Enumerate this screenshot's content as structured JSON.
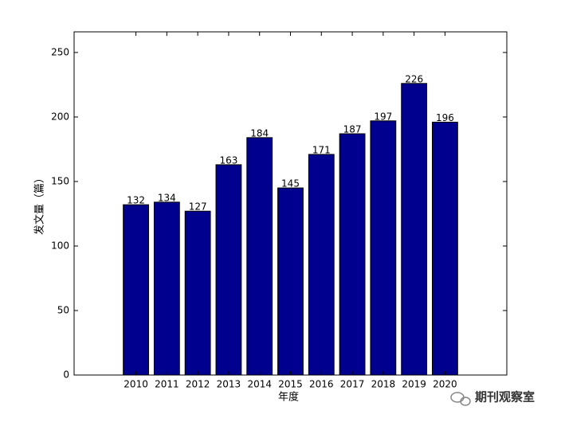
{
  "chart_data": {
    "type": "bar",
    "x_label": "年度",
    "y_label": "发文量（篇）",
    "categories": [
      "2010",
      "2011",
      "2012",
      "2013",
      "2014",
      "2015",
      "2016",
      "2017",
      "2018",
      "2019",
      "2020"
    ],
    "values": [
      132,
      134,
      127,
      163,
      184,
      145,
      171,
      187,
      197,
      226,
      196
    ],
    "color": "#00008f",
    "ylim": [
      0,
      266
    ],
    "yticks": [
      0,
      50,
      100,
      150,
      200,
      250
    ]
  },
  "watermark": "期刊观察室"
}
